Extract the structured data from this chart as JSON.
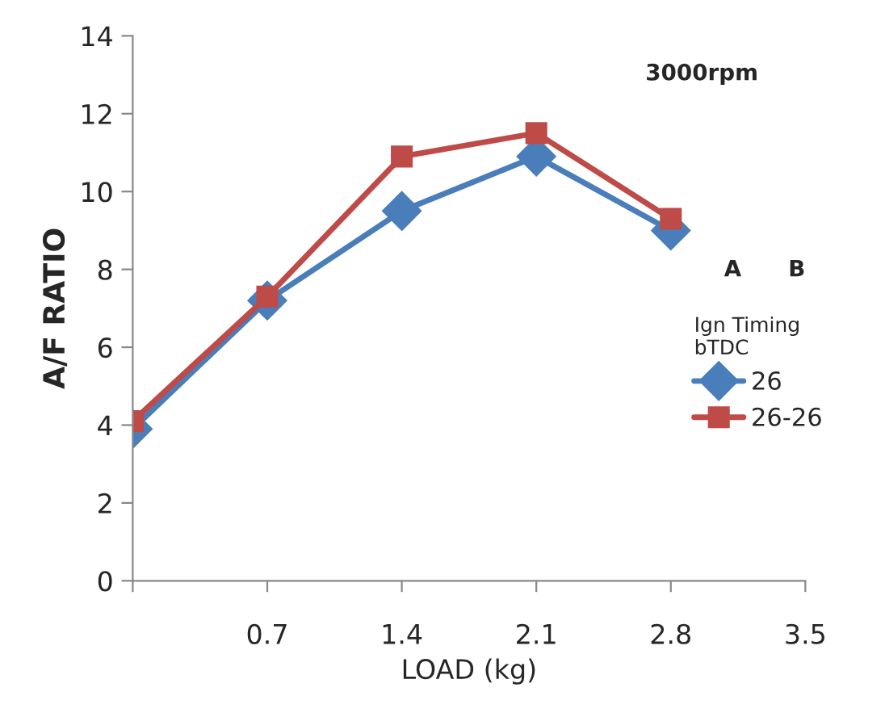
{
  "chart_data": {
    "type": "line",
    "xlabel": "LOAD (kg)",
    "ylabel": "A/F RATIO",
    "legend_title": "Ign Timing\nbTDC",
    "annotations": [
      "3000rpm",
      "A      B"
    ],
    "x": [
      0,
      0.7,
      1.4,
      2.1,
      2.8
    ],
    "series": [
      {
        "name": "26",
        "color": "#4a7ebb",
        "marker": "diamond",
        "values": [
          3.9,
          7.2,
          9.5,
          10.9,
          9.0
        ]
      },
      {
        "name": "26-26",
        "color": "#be4b48",
        "marker": "square",
        "values": [
          4.1,
          7.3,
          10.9,
          11.5,
          9.3
        ]
      }
    ],
    "xlim": [
      0,
      3.5
    ],
    "xticks": [
      {
        "value": 0,
        "label": null
      },
      0.7,
      1.4,
      2.1,
      2.8,
      3.5
    ],
    "ylim": [
      0,
      14
    ],
    "yticks": [
      0,
      2,
      4,
      6,
      8,
      10,
      12,
      14
    ],
    "grid": false,
    "legend": "right",
    "line_style": "solid"
  }
}
